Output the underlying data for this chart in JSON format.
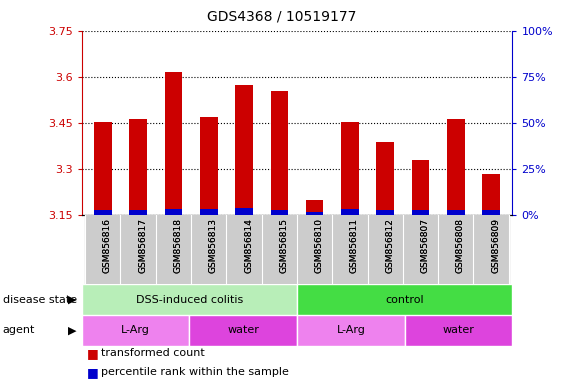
{
  "title": "GDS4368 / 10519177",
  "samples": [
    "GSM856816",
    "GSM856817",
    "GSM856818",
    "GSM856813",
    "GSM856814",
    "GSM856815",
    "GSM856810",
    "GSM856811",
    "GSM856812",
    "GSM856807",
    "GSM856808",
    "GSM856809"
  ],
  "red_values": [
    3.453,
    3.462,
    3.614,
    3.468,
    3.572,
    3.554,
    3.198,
    3.452,
    3.388,
    3.328,
    3.462,
    3.283
  ],
  "blue_values": [
    2.5,
    3.0,
    3.5,
    3.5,
    4.0,
    2.5,
    1.5,
    3.5,
    2.5,
    2.5,
    3.0,
    2.5
  ],
  "ylim_left": [
    3.15,
    3.75
  ],
  "ylim_right": [
    0,
    100
  ],
  "yticks_left": [
    3.15,
    3.3,
    3.45,
    3.6,
    3.75
  ],
  "yticks_right": [
    0,
    25,
    50,
    75,
    100
  ],
  "ytick_labels_left": [
    "3.15",
    "3.3",
    "3.45",
    "3.6",
    "3.75"
  ],
  "ytick_labels_right": [
    "0%",
    "25%",
    "50%",
    "75%",
    "100%"
  ],
  "disease_state_groups": [
    {
      "label": "DSS-induced colitis",
      "start": 0,
      "end": 6,
      "color": "#B8EEB8"
    },
    {
      "label": "control",
      "start": 6,
      "end": 12,
      "color": "#44DD44"
    }
  ],
  "agent_groups": [
    {
      "label": "L-Arg",
      "start": 0,
      "end": 3,
      "color": "#EE82EE"
    },
    {
      "label": "water",
      "start": 3,
      "end": 6,
      "color": "#DD44DD"
    },
    {
      "label": "L-Arg",
      "start": 6,
      "end": 9,
      "color": "#EE82EE"
    },
    {
      "label": "water",
      "start": 9,
      "end": 12,
      "color": "#DD44DD"
    }
  ],
  "legend_items": [
    {
      "color": "#CC0000",
      "label": "transformed count"
    },
    {
      "color": "#0000CC",
      "label": "percentile rank within the sample"
    }
  ],
  "bar_width": 0.5,
  "red_color": "#CC0000",
  "blue_color": "#0000CC",
  "base_value": 3.15,
  "tick_bg_color": "#CCCCCC"
}
